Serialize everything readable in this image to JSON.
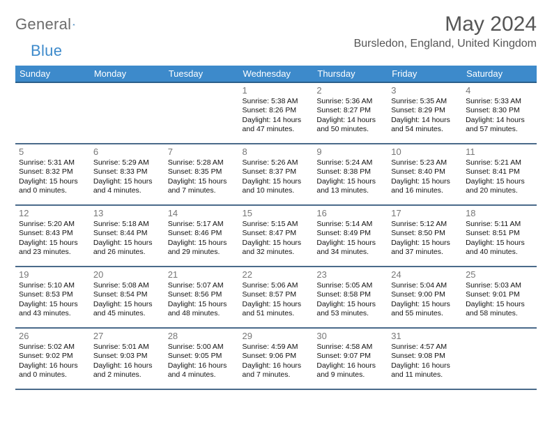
{
  "brand": {
    "part1": "General",
    "part2": "Blue"
  },
  "title": "May 2024",
  "location": "Bursledon, England, United Kingdom",
  "colors": {
    "header_bg": "#3d8acb",
    "header_text": "#ffffff",
    "row_border": "#4a6a8a",
    "daynum": "#777777",
    "title_color": "#555555",
    "logo_gray": "#6b6b6b",
    "logo_blue": "#3d8acb",
    "background": "#ffffff"
  },
  "typography": {
    "title_fontsize": 30,
    "location_fontsize": 16,
    "header_fontsize": 13,
    "body_fontsize": 10.5
  },
  "weekdays": [
    "Sunday",
    "Monday",
    "Tuesday",
    "Wednesday",
    "Thursday",
    "Friday",
    "Saturday"
  ],
  "weeks": [
    [
      null,
      null,
      null,
      {
        "day": "1",
        "sunrise": "Sunrise: 5:38 AM",
        "sunset": "Sunset: 8:26 PM",
        "daylight1": "Daylight: 14 hours",
        "daylight2": "and 47 minutes."
      },
      {
        "day": "2",
        "sunrise": "Sunrise: 5:36 AM",
        "sunset": "Sunset: 8:27 PM",
        "daylight1": "Daylight: 14 hours",
        "daylight2": "and 50 minutes."
      },
      {
        "day": "3",
        "sunrise": "Sunrise: 5:35 AM",
        "sunset": "Sunset: 8:29 PM",
        "daylight1": "Daylight: 14 hours",
        "daylight2": "and 54 minutes."
      },
      {
        "day": "4",
        "sunrise": "Sunrise: 5:33 AM",
        "sunset": "Sunset: 8:30 PM",
        "daylight1": "Daylight: 14 hours",
        "daylight2": "and 57 minutes."
      }
    ],
    [
      {
        "day": "5",
        "sunrise": "Sunrise: 5:31 AM",
        "sunset": "Sunset: 8:32 PM",
        "daylight1": "Daylight: 15 hours",
        "daylight2": "and 0 minutes."
      },
      {
        "day": "6",
        "sunrise": "Sunrise: 5:29 AM",
        "sunset": "Sunset: 8:33 PM",
        "daylight1": "Daylight: 15 hours",
        "daylight2": "and 4 minutes."
      },
      {
        "day": "7",
        "sunrise": "Sunrise: 5:28 AM",
        "sunset": "Sunset: 8:35 PM",
        "daylight1": "Daylight: 15 hours",
        "daylight2": "and 7 minutes."
      },
      {
        "day": "8",
        "sunrise": "Sunrise: 5:26 AM",
        "sunset": "Sunset: 8:37 PM",
        "daylight1": "Daylight: 15 hours",
        "daylight2": "and 10 minutes."
      },
      {
        "day": "9",
        "sunrise": "Sunrise: 5:24 AM",
        "sunset": "Sunset: 8:38 PM",
        "daylight1": "Daylight: 15 hours",
        "daylight2": "and 13 minutes."
      },
      {
        "day": "10",
        "sunrise": "Sunrise: 5:23 AM",
        "sunset": "Sunset: 8:40 PM",
        "daylight1": "Daylight: 15 hours",
        "daylight2": "and 16 minutes."
      },
      {
        "day": "11",
        "sunrise": "Sunrise: 5:21 AM",
        "sunset": "Sunset: 8:41 PM",
        "daylight1": "Daylight: 15 hours",
        "daylight2": "and 20 minutes."
      }
    ],
    [
      {
        "day": "12",
        "sunrise": "Sunrise: 5:20 AM",
        "sunset": "Sunset: 8:43 PM",
        "daylight1": "Daylight: 15 hours",
        "daylight2": "and 23 minutes."
      },
      {
        "day": "13",
        "sunrise": "Sunrise: 5:18 AM",
        "sunset": "Sunset: 8:44 PM",
        "daylight1": "Daylight: 15 hours",
        "daylight2": "and 26 minutes."
      },
      {
        "day": "14",
        "sunrise": "Sunrise: 5:17 AM",
        "sunset": "Sunset: 8:46 PM",
        "daylight1": "Daylight: 15 hours",
        "daylight2": "and 29 minutes."
      },
      {
        "day": "15",
        "sunrise": "Sunrise: 5:15 AM",
        "sunset": "Sunset: 8:47 PM",
        "daylight1": "Daylight: 15 hours",
        "daylight2": "and 32 minutes."
      },
      {
        "day": "16",
        "sunrise": "Sunrise: 5:14 AM",
        "sunset": "Sunset: 8:49 PM",
        "daylight1": "Daylight: 15 hours",
        "daylight2": "and 34 minutes."
      },
      {
        "day": "17",
        "sunrise": "Sunrise: 5:12 AM",
        "sunset": "Sunset: 8:50 PM",
        "daylight1": "Daylight: 15 hours",
        "daylight2": "and 37 minutes."
      },
      {
        "day": "18",
        "sunrise": "Sunrise: 5:11 AM",
        "sunset": "Sunset: 8:51 PM",
        "daylight1": "Daylight: 15 hours",
        "daylight2": "and 40 minutes."
      }
    ],
    [
      {
        "day": "19",
        "sunrise": "Sunrise: 5:10 AM",
        "sunset": "Sunset: 8:53 PM",
        "daylight1": "Daylight: 15 hours",
        "daylight2": "and 43 minutes."
      },
      {
        "day": "20",
        "sunrise": "Sunrise: 5:08 AM",
        "sunset": "Sunset: 8:54 PM",
        "daylight1": "Daylight: 15 hours",
        "daylight2": "and 45 minutes."
      },
      {
        "day": "21",
        "sunrise": "Sunrise: 5:07 AM",
        "sunset": "Sunset: 8:56 PM",
        "daylight1": "Daylight: 15 hours",
        "daylight2": "and 48 minutes."
      },
      {
        "day": "22",
        "sunrise": "Sunrise: 5:06 AM",
        "sunset": "Sunset: 8:57 PM",
        "daylight1": "Daylight: 15 hours",
        "daylight2": "and 51 minutes."
      },
      {
        "day": "23",
        "sunrise": "Sunrise: 5:05 AM",
        "sunset": "Sunset: 8:58 PM",
        "daylight1": "Daylight: 15 hours",
        "daylight2": "and 53 minutes."
      },
      {
        "day": "24",
        "sunrise": "Sunrise: 5:04 AM",
        "sunset": "Sunset: 9:00 PM",
        "daylight1": "Daylight: 15 hours",
        "daylight2": "and 55 minutes."
      },
      {
        "day": "25",
        "sunrise": "Sunrise: 5:03 AM",
        "sunset": "Sunset: 9:01 PM",
        "daylight1": "Daylight: 15 hours",
        "daylight2": "and 58 minutes."
      }
    ],
    [
      {
        "day": "26",
        "sunrise": "Sunrise: 5:02 AM",
        "sunset": "Sunset: 9:02 PM",
        "daylight1": "Daylight: 16 hours",
        "daylight2": "and 0 minutes."
      },
      {
        "day": "27",
        "sunrise": "Sunrise: 5:01 AM",
        "sunset": "Sunset: 9:03 PM",
        "daylight1": "Daylight: 16 hours",
        "daylight2": "and 2 minutes."
      },
      {
        "day": "28",
        "sunrise": "Sunrise: 5:00 AM",
        "sunset": "Sunset: 9:05 PM",
        "daylight1": "Daylight: 16 hours",
        "daylight2": "and 4 minutes."
      },
      {
        "day": "29",
        "sunrise": "Sunrise: 4:59 AM",
        "sunset": "Sunset: 9:06 PM",
        "daylight1": "Daylight: 16 hours",
        "daylight2": "and 7 minutes."
      },
      {
        "day": "30",
        "sunrise": "Sunrise: 4:58 AM",
        "sunset": "Sunset: 9:07 PM",
        "daylight1": "Daylight: 16 hours",
        "daylight2": "and 9 minutes."
      },
      {
        "day": "31",
        "sunrise": "Sunrise: 4:57 AM",
        "sunset": "Sunset: 9:08 PM",
        "daylight1": "Daylight: 16 hours",
        "daylight2": "and 11 minutes."
      },
      null
    ]
  ]
}
